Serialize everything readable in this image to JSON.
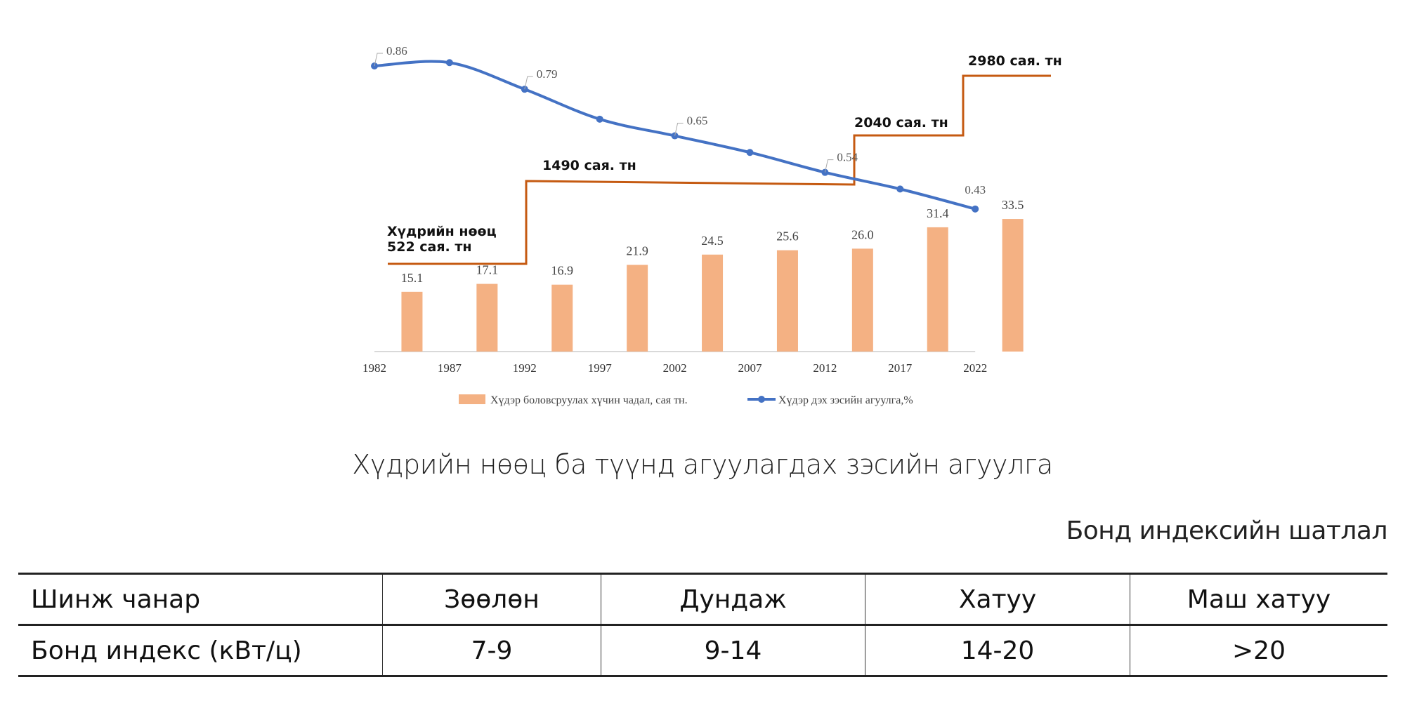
{
  "chart_data": {
    "type": "bar+line",
    "x_ticks": [
      "1982",
      "1987",
      "1992",
      "1997",
      "2002",
      "2007",
      "2012",
      "2017",
      "2022"
    ],
    "bars": {
      "name": "Хүдэр боловсруулах хүчин чадал, сая тн.",
      "values": [
        15.1,
        17.1,
        16.9,
        21.9,
        24.5,
        25.6,
        26.0,
        31.4,
        33.5
      ],
      "labels": [
        "15.1",
        "17.1",
        "16.9",
        "21.9",
        "24.5",
        "25.6",
        "26.0",
        "31.4",
        "33.5"
      ],
      "color": "#F4B183"
    },
    "line": {
      "name": "Хүдэр дэх зэсийн агуулга,%",
      "x": [
        1982,
        1987,
        1992,
        1997,
        2002,
        2007,
        2012,
        2017,
        2022
      ],
      "values": [
        0.86,
        0.87,
        0.79,
        0.7,
        0.65,
        0.6,
        0.54,
        0.49,
        0.43
      ],
      "point_labels": {
        "0": "0.86",
        "2": "0.79",
        "4": "0.65",
        "6": "0.54",
        "8": "0.43"
      },
      "color": "#4472C4"
    },
    "reserve_steps": {
      "color": "#C55A11",
      "steps": [
        {
          "from": 1982,
          "to": 1992,
          "value": 522,
          "label_line1": "Хүдрийн нөөц",
          "label": "522 сая. тн"
        },
        {
          "from": 1992,
          "to": 2015,
          "value": 1490,
          "label": "1490 сая. тн"
        },
        {
          "from": 2015,
          "to": 2022,
          "value": 2040,
          "label": "2040 сая. тн"
        },
        {
          "from": 2022,
          "to": 2026,
          "value": 2980,
          "label": "2980 сая. тн"
        }
      ]
    },
    "legend_position": "bottom",
    "caption": "Хүдрийн нөөц ба түүнд агуулагдах зэсийн агуулга"
  },
  "table": {
    "title": "Бонд индексийн шатлал",
    "header": [
      "Шинж чанар",
      "Зөөлөн",
      "Дундаж",
      "Хатуу",
      "Маш хатуу"
    ],
    "rows": [
      [
        "Бонд индекс (кВт/ц)",
        "7-9",
        "9-14",
        "14-20",
        ">20"
      ]
    ]
  }
}
